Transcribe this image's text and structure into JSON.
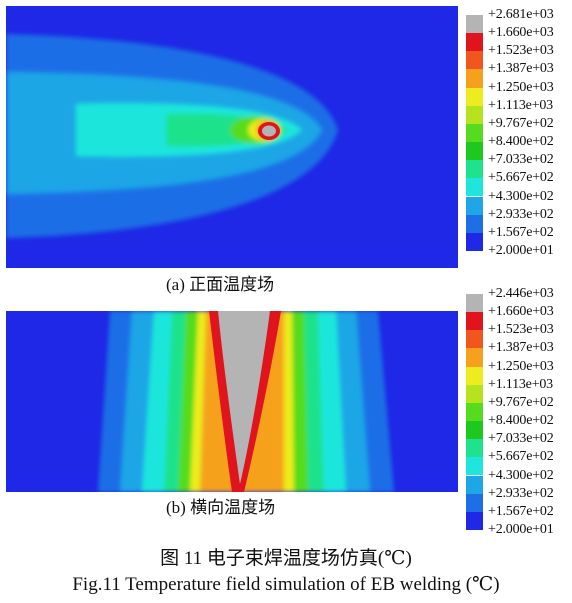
{
  "panel_a": {
    "caption": "(a) 正面温度场",
    "legend": [
      "+2.681e+03",
      "+1.660e+03",
      "+1.523e+03",
      "+1.387e+03",
      "+1.250e+03",
      "+1.113e+03",
      "+9.767e+02",
      "+8.400e+02",
      "+7.033e+02",
      "+5.667e+02",
      "+4.300e+02",
      "+2.933e+02",
      "+1.567e+02",
      "+2.000e+01"
    ]
  },
  "panel_b": {
    "caption": "(b) 横向温度场",
    "legend": [
      "+2.446e+03",
      "+1.660e+03",
      "+1.523e+03",
      "+1.387e+03",
      "+1.250e+03",
      "+1.113e+03",
      "+9.767e+02",
      "+8.400e+02",
      "+7.033e+02",
      "+5.667e+02",
      "+4.300e+02",
      "+2.933e+02",
      "+1.567e+02",
      "+2.000e+01"
    ]
  },
  "band_colors": [
    "#b4b4b4",
    "#e0141c",
    "#f0561e",
    "#f5a11e",
    "#ecec1e",
    "#b6e31e",
    "#55dc1e",
    "#1ec81e",
    "#1ee28c",
    "#1ee6dc",
    "#1ea6e6",
    "#1e6ee6",
    "#1e28e6",
    "#3a3a3a"
  ],
  "figure_caption_cn": "图 11   电子束焊温度场仿真(℃)",
  "figure_caption_en": "Fig.11   Temperature field simulation of EB welding (℃)"
}
